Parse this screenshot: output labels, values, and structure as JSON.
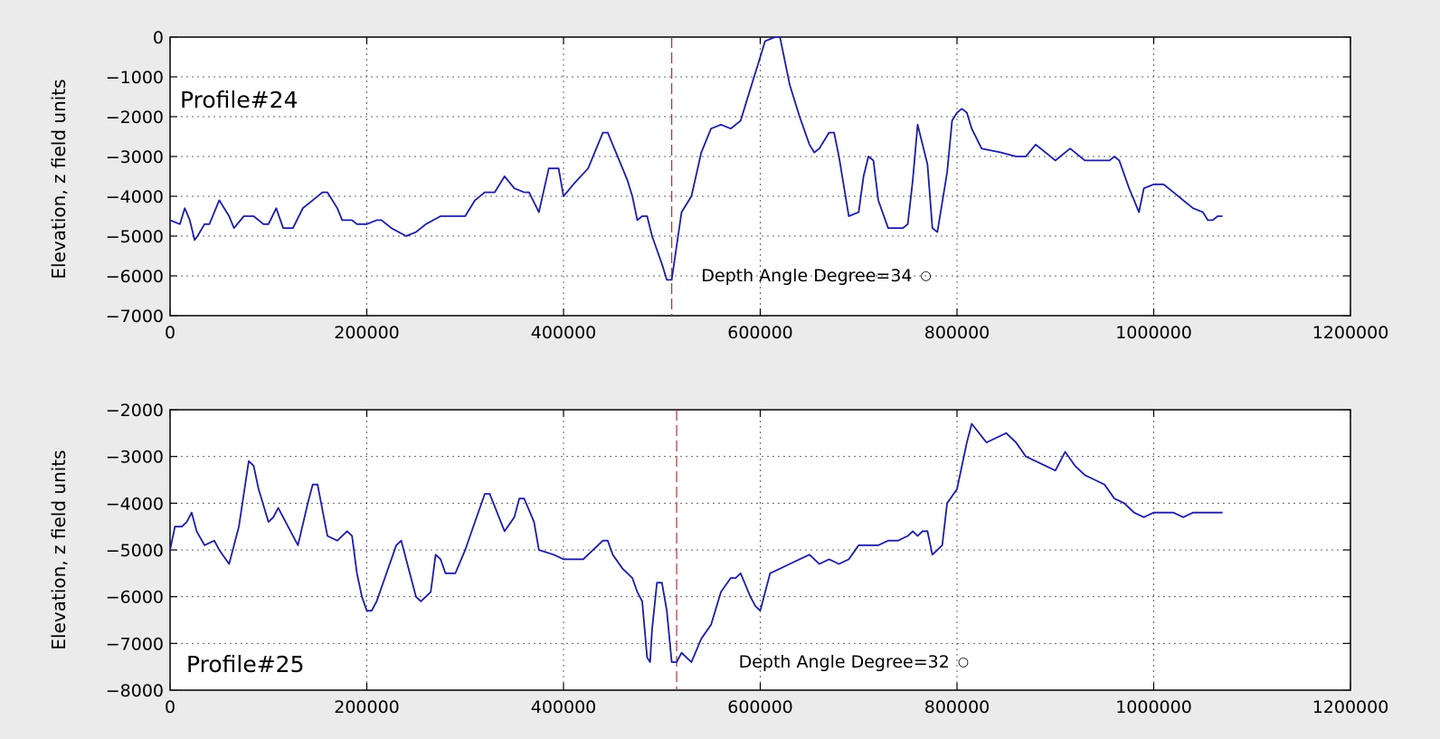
{
  "chart_data": [
    {
      "type": "line",
      "annotation": "Profile#24",
      "ylabel": "Elevation, z field units",
      "xlim": [
        0,
        1200000
      ],
      "ylim": [
        -7000,
        0
      ],
      "xticks": [
        "0",
        "200000",
        "400000",
        "600000",
        "800000",
        "1000000",
        "1200000"
      ],
      "yticks": [
        "0",
        "−1000",
        "−2000",
        "−3000",
        "−4000",
        "−5000",
        "−6000",
        "−7000"
      ],
      "grid": true,
      "vline_x": 510000,
      "depth_label": "Depth Angle Degree=34",
      "degree_symbol": "○",
      "line_color": "#1c1ca8",
      "vline_color": "#a8343a",
      "x": [
        0,
        10000,
        15000,
        20000,
        25000,
        28000,
        35000,
        40000,
        50000,
        60000,
        65000,
        75000,
        85000,
        95000,
        100000,
        108000,
        115000,
        125000,
        135000,
        145000,
        155000,
        160000,
        170000,
        175000,
        185000,
        190000,
        200000,
        210000,
        215000,
        225000,
        240000,
        250000,
        260000,
        275000,
        300000,
        310000,
        320000,
        330000,
        340000,
        350000,
        360000,
        365000,
        375000,
        385000,
        395000,
        400000,
        410000,
        425000,
        440000,
        445000,
        455000,
        465000,
        470000,
        475000,
        480000,
        485000,
        490000,
        500000,
        505000,
        510000,
        520000,
        530000,
        540000,
        550000,
        560000,
        570000,
        575000,
        580000,
        585000,
        590000,
        600000,
        605000,
        615000,
        620000,
        630000,
        640000,
        650000,
        655000,
        660000,
        670000,
        675000,
        680000,
        690000,
        700000,
        705000,
        710000,
        715000,
        720000,
        730000,
        740000,
        745000,
        750000,
        755000,
        760000,
        770000,
        775000,
        780000,
        790000,
        795000,
        800000,
        805000,
        810000,
        815000,
        825000,
        845000,
        860000,
        870000,
        880000,
        890000,
        900000,
        905000,
        910000,
        915000,
        920000,
        930000,
        940000,
        945000,
        950000,
        955000,
        960000,
        965000,
        975000,
        980000,
        985000,
        990000,
        1000000,
        1010000,
        1020000,
        1030000,
        1040000,
        1050000,
        1055000,
        1060000,
        1065000,
        1070000
      ],
      "y": [
        -4600,
        -4700,
        -4300,
        -4600,
        -5100,
        -5000,
        -4700,
        -4700,
        -4100,
        -4500,
        -4800,
        -4500,
        -4500,
        -4700,
        -4700,
        -4300,
        -4800,
        -4800,
        -4300,
        -4100,
        -3900,
        -3900,
        -4300,
        -4600,
        -4600,
        -4700,
        -4700,
        -4600,
        -4600,
        -4800,
        -5000,
        -4900,
        -4700,
        -4500,
        -4500,
        -4100,
        -3900,
        -3900,
        -3500,
        -3800,
        -3900,
        -3900,
        -4400,
        -3300,
        -3300,
        -4000,
        -3700,
        -3300,
        -2400,
        -2400,
        -3000,
        -3600,
        -4000,
        -4600,
        -4500,
        -4500,
        -5000,
        -5700,
        -6100,
        -6100,
        -4400,
        -4000,
        -2900,
        -2300,
        -2200,
        -2300,
        -2200,
        -2100,
        -1700,
        -1300,
        -500,
        -100,
        0,
        0,
        -1200,
        -2000,
        -2700,
        -2900,
        -2800,
        -2400,
        -2400,
        -3000,
        -4500,
        -4400,
        -3500,
        -3000,
        -3100,
        -4100,
        -4800,
        -4800,
        -4800,
        -4700,
        -3600,
        -2200,
        -3200,
        -4800,
        -4900,
        -3400,
        -2100,
        -1900,
        -1800,
        -1900,
        -2300,
        -2800,
        -2900,
        -3000,
        -3000,
        -2700,
        -2900,
        -3100,
        -3000,
        -2900,
        -2800,
        -2900,
        -3100,
        -3100,
        -3100,
        -3100,
        -3100,
        -3000,
        -3100,
        -3800,
        -4100,
        -4400,
        -3800,
        -3700,
        -3700,
        -3900,
        -4100,
        -4300,
        -4400,
        -4600,
        -4600,
        -4500,
        -4500
      ]
    },
    {
      "type": "line",
      "annotation": "Profile#25",
      "ylabel": "Elevation, z field units",
      "xlim": [
        0,
        1200000
      ],
      "ylim": [
        -8000,
        -2000
      ],
      "xticks": [
        "0",
        "200000",
        "400000",
        "600000",
        "800000",
        "1000000",
        "1200000"
      ],
      "yticks": [
        "−2000",
        "−3000",
        "−4000",
        "−5000",
        "−6000",
        "−7000",
        "−8000"
      ],
      "grid": true,
      "vline_x": 515000,
      "depth_label": "Depth Angle Degree=32",
      "degree_symbol": "○",
      "line_color": "#1c1ca8",
      "vline_color": "#a8343a",
      "x": [
        0,
        5000,
        12000,
        17000,
        22000,
        27000,
        35000,
        45000,
        50000,
        60000,
        70000,
        80000,
        85000,
        90000,
        100000,
        105000,
        110000,
        120000,
        130000,
        140000,
        145000,
        150000,
        160000,
        170000,
        175000,
        180000,
        185000,
        190000,
        195000,
        200000,
        205000,
        210000,
        225000,
        230000,
        235000,
        240000,
        250000,
        255000,
        260000,
        265000,
        270000,
        275000,
        280000,
        290000,
        300000,
        310000,
        320000,
        325000,
        340000,
        350000,
        355000,
        360000,
        370000,
        375000,
        390000,
        400000,
        420000,
        440000,
        445000,
        450000,
        460000,
        470000,
        475000,
        480000,
        485000,
        488000,
        490000,
        495000,
        500000,
        505000,
        510000,
        515000,
        520000,
        525000,
        530000,
        540000,
        550000,
        560000,
        570000,
        575000,
        580000,
        590000,
        595000,
        600000,
        610000,
        620000,
        630000,
        640000,
        650000,
        660000,
        670000,
        680000,
        690000,
        700000,
        720000,
        730000,
        740000,
        750000,
        755000,
        760000,
        765000,
        770000,
        775000,
        780000,
        785000,
        790000,
        800000,
        810000,
        815000,
        830000,
        840000,
        850000,
        860000,
        870000,
        880000,
        900000,
        910000,
        920000,
        930000,
        940000,
        950000,
        960000,
        970000,
        980000,
        990000,
        1000000,
        1020000,
        1030000,
        1040000,
        1050000,
        1060000,
        1070000
      ],
      "y": [
        -5000,
        -4500,
        -4500,
        -4400,
        -4200,
        -4600,
        -4900,
        -4800,
        -5000,
        -5300,
        -4500,
        -3100,
        -3200,
        -3700,
        -4400,
        -4300,
        -4100,
        -4500,
        -4900,
        -4000,
        -3600,
        -3600,
        -4700,
        -4800,
        -4700,
        -4600,
        -4700,
        -5500,
        -6000,
        -6300,
        -6300,
        -6100,
        -5200,
        -4900,
        -4800,
        -5200,
        -6000,
        -6100,
        -6000,
        -5900,
        -5100,
        -5200,
        -5500,
        -5500,
        -5000,
        -4400,
        -3800,
        -3800,
        -4600,
        -4300,
        -3900,
        -3900,
        -4400,
        -5000,
        -5100,
        -5200,
        -5200,
        -4800,
        -4800,
        -5100,
        -5400,
        -5600,
        -5900,
        -6100,
        -7300,
        -7400,
        -6700,
        -5700,
        -5700,
        -6300,
        -7400,
        -7400,
        -7200,
        -7300,
        -7400,
        -6900,
        -6600,
        -5900,
        -5600,
        -5600,
        -5500,
        -6000,
        -6200,
        -6300,
        -5500,
        -5400,
        -5300,
        -5200,
        -5100,
        -5300,
        -5200,
        -5300,
        -5200,
        -4900,
        -4900,
        -4800,
        -4800,
        -4700,
        -4600,
        -4700,
        -4600,
        -4600,
        -5100,
        -5000,
        -4900,
        -4000,
        -3700,
        -2700,
        -2300,
        -2700,
        -2600,
        -2500,
        -2700,
        -3000,
        -3100,
        -3300,
        -2900,
        -3200,
        -3400,
        -3500,
        -3600,
        -3900,
        -4000,
        -4200,
        -4300,
        -4200,
        -4200,
        -4300,
        -4200,
        -4200,
        -4200,
        -4200
      ]
    }
  ]
}
